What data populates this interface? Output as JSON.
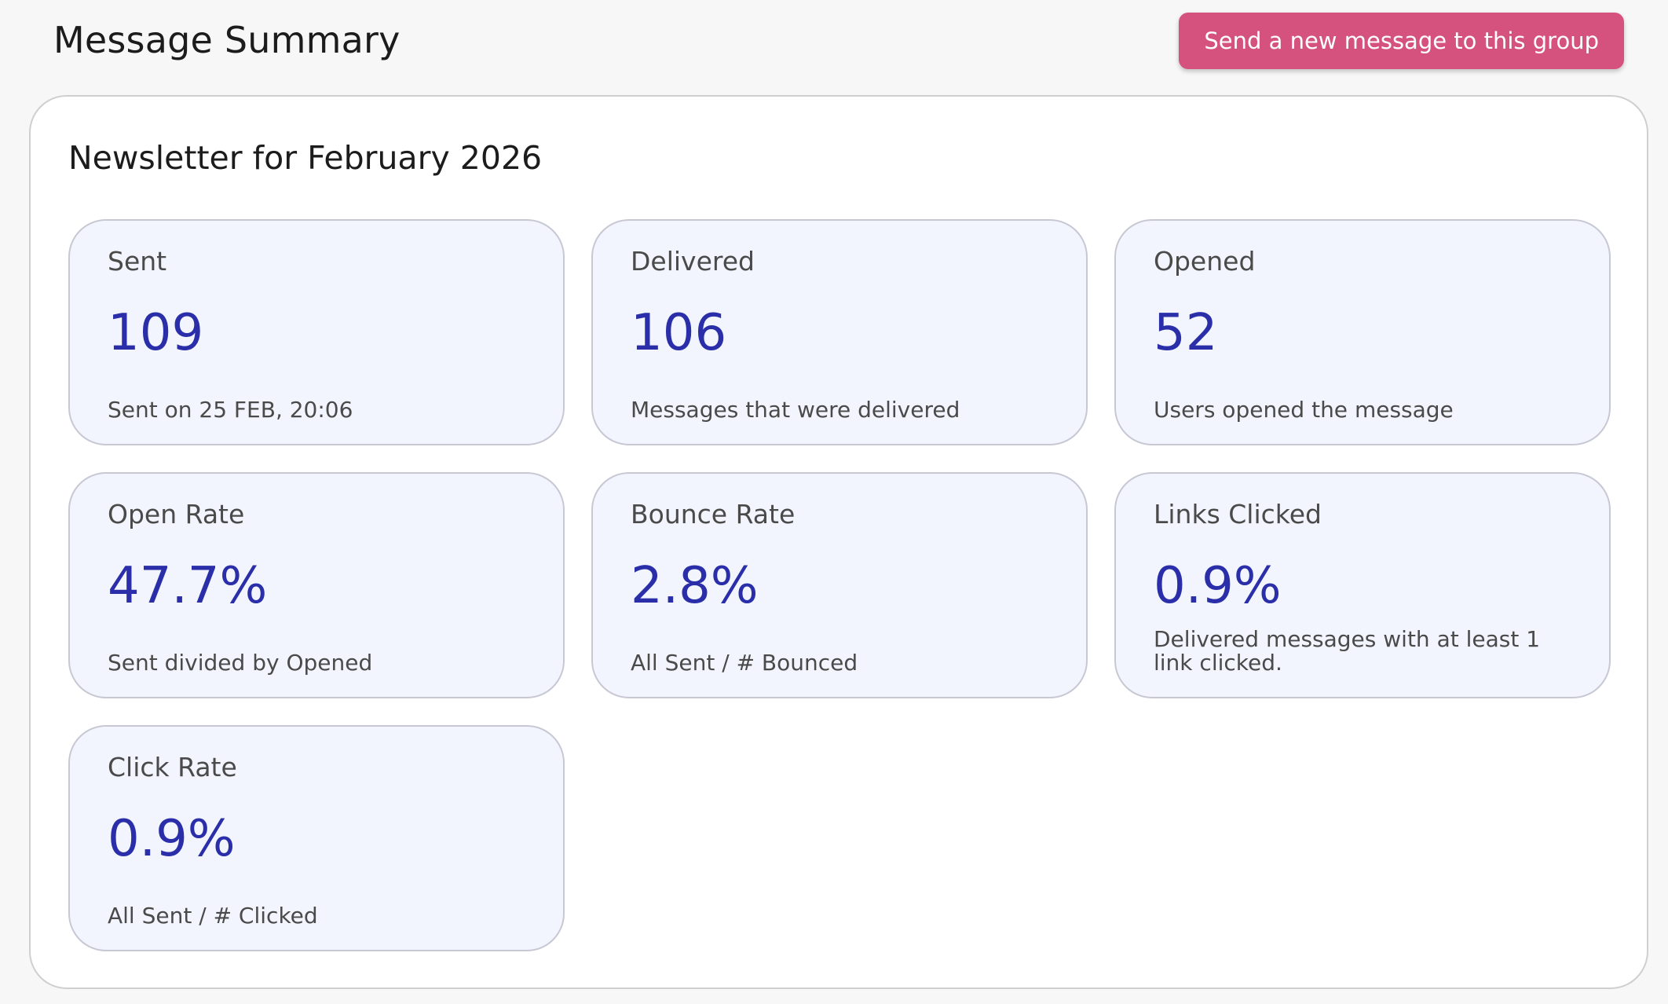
{
  "header": {
    "title": "Message Summary",
    "send_button_label": "Send a new message to this group"
  },
  "summary": {
    "heading": "Newsletter for February 2026",
    "metrics": [
      {
        "label": "Sent",
        "value": "109",
        "description": "Sent on 25 FEB, 20:06"
      },
      {
        "label": "Delivered",
        "value": "106",
        "description": "Messages that were delivered"
      },
      {
        "label": "Opened",
        "value": "52",
        "description": "Users opened the message"
      },
      {
        "label": "Open Rate",
        "value": "47.7%",
        "description": "Sent divided by Opened"
      },
      {
        "label": "Bounce Rate",
        "value": "2.8%",
        "description": "All Sent / # Bounced"
      },
      {
        "label": "Links Clicked",
        "value": "0.9%",
        "description": "Delivered messages with at least 1 link clicked."
      },
      {
        "label": "Click Rate",
        "value": "0.9%",
        "description": "All Sent / # Clicked"
      }
    ]
  },
  "colors": {
    "accent_button": "#d4527d",
    "metric_value": "#2a2fa9",
    "card_background": "#f2f5fe"
  }
}
